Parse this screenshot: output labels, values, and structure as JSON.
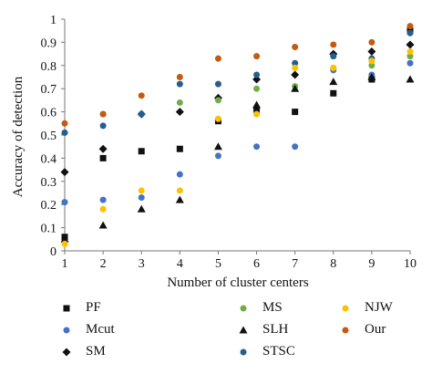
{
  "chart_data": {
    "type": "scatter",
    "xlabel": "Number of cluster centers",
    "ylabel": "Accuracy of detection",
    "xlim": [
      1,
      10
    ],
    "ylim": [
      0,
      1
    ],
    "x_ticks": [
      "1",
      "2",
      "3",
      "4",
      "5",
      "6",
      "7",
      "8",
      "9",
      "10"
    ],
    "y_ticks": [
      "0",
      "0.1",
      "0.2",
      "0.3",
      "0.4",
      "0.5",
      "0.6",
      "0.7",
      "0.8",
      "0.9",
      "1"
    ],
    "grid": false,
    "legend_position": "bottom",
    "x": [
      1,
      2,
      3,
      4,
      5,
      6,
      7,
      8,
      9,
      10
    ],
    "series": [
      {
        "name": "PF",
        "marker": "square",
        "color": "#111111",
        "values": [
          0.06,
          0.4,
          0.43,
          0.44,
          0.56,
          0.61,
          0.6,
          0.68,
          0.74,
          0.95
        ]
      },
      {
        "name": "Mcut",
        "marker": "circle",
        "color": "#4472c4",
        "values": [
          0.21,
          0.22,
          0.23,
          0.33,
          0.41,
          0.45,
          0.45,
          0.78,
          0.76,
          0.81
        ]
      },
      {
        "name": "SM",
        "marker": "diamond",
        "color": "#111111",
        "values": [
          0.34,
          0.44,
          0.59,
          0.6,
          0.66,
          0.74,
          0.76,
          0.85,
          0.86,
          0.89
        ]
      },
      {
        "name": "MS",
        "marker": "circle",
        "color": "#70ad47",
        "values": [
          0.51,
          0.59,
          0.59,
          0.64,
          0.65,
          0.7,
          0.71,
          0.79,
          0.8,
          0.84
        ]
      },
      {
        "name": "SLH",
        "marker": "triangle",
        "color": "#111111",
        "values": [
          0.05,
          0.11,
          0.18,
          0.22,
          0.45,
          0.63,
          0.7,
          0.73,
          0.75,
          0.74
        ]
      },
      {
        "name": "STSC",
        "marker": "circle",
        "color": "#255e91",
        "values": [
          0.51,
          0.54,
          0.59,
          0.72,
          0.72,
          0.76,
          0.81,
          0.84,
          0.83,
          0.94
        ]
      },
      {
        "name": "NJW",
        "marker": "circle",
        "color": "#ffc000",
        "values": [
          0.03,
          0.18,
          0.26,
          0.26,
          0.57,
          0.59,
          0.79,
          0.79,
          0.82,
          0.86
        ]
      },
      {
        "name": "Our",
        "marker": "circle",
        "color": "#c55a11",
        "values": [
          0.55,
          0.59,
          0.67,
          0.75,
          0.83,
          0.84,
          0.88,
          0.89,
          0.9,
          0.97
        ]
      }
    ]
  }
}
